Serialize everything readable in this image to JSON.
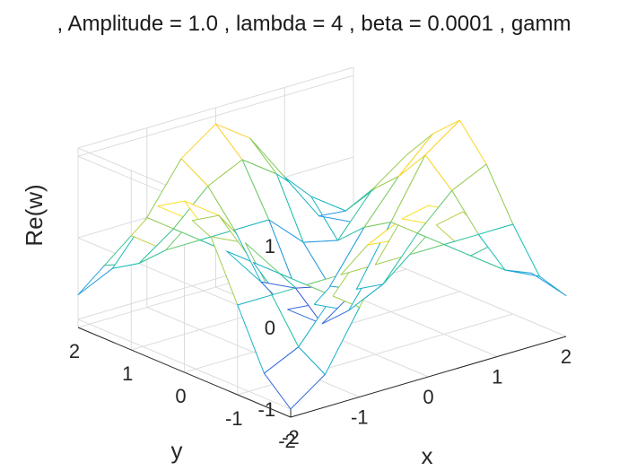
{
  "chart_data": {
    "type": "surface-mesh",
    "title": ", Amplitude = 1.0 , lambda = 4 , beta = 0.0001 , gamm",
    "xlabel": "x",
    "ylabel": "y",
    "zlabel": "Re(w)",
    "xlim": [
      -2,
      2
    ],
    "ylim": [
      -2,
      2
    ],
    "zlim": [
      -1.1,
      1.1
    ],
    "x_ticks": [
      -2,
      -1,
      0,
      1,
      2
    ],
    "y_ticks": [
      -2,
      -1,
      0,
      1,
      2
    ],
    "z_ticks": [
      -1,
      0,
      1
    ],
    "x_tick_labels": [
      "-2",
      "-1",
      "0",
      "1",
      "2"
    ],
    "y_tick_labels": [
      "-2",
      "-1",
      "0",
      "1",
      "2"
    ],
    "z_tick_labels": [
      "-1",
      "0",
      "1"
    ],
    "grid": true,
    "colormap": [
      "#3e26a8",
      "#2e87f7",
      "#13beb8",
      "#81cc59",
      "#fcce2e",
      "#f9fb0e"
    ],
    "x": [
      -2,
      -1.5,
      -1,
      -0.5,
      0,
      0.5,
      1,
      1.5,
      2
    ],
    "y": [
      -2,
      -1.5,
      -1,
      -0.5,
      0,
      0.5,
      1,
      1.5,
      2
    ],
    "z": [
      [
        -1.0,
        -0.7,
        0.0,
        0.7,
        1.0,
        0.8,
        0.3,
        -0.2,
        -0.6
      ],
      [
        -0.7,
        -0.5,
        0.0,
        0.5,
        0.7,
        0.5,
        0.0,
        -0.3,
        -0.5
      ],
      [
        0.0,
        0.0,
        0.0,
        0.0,
        0.0,
        0.0,
        0.0,
        0.0,
        0.0
      ],
      [
        0.7,
        0.5,
        0.0,
        -0.5,
        -0.7,
        -0.5,
        0.0,
        0.4,
        0.6
      ],
      [
        1.0,
        0.7,
        0.0,
        -0.7,
        -1.0,
        -0.7,
        0.0,
        0.7,
        1.0
      ],
      [
        0.8,
        0.5,
        0.0,
        -0.5,
        -0.7,
        -0.8,
        -0.2,
        0.3,
        0.7
      ],
      [
        0.3,
        0.0,
        0.0,
        0.0,
        0.0,
        -0.4,
        -0.5,
        0.0,
        0.3
      ],
      [
        -0.2,
        -0.3,
        0.0,
        0.4,
        0.6,
        0.3,
        -0.1,
        -0.4,
        -0.2
      ],
      [
        -0.7,
        -0.5,
        0.0,
        0.6,
        0.9,
        0.6,
        0.0,
        -0.6,
        -0.8
      ]
    ]
  }
}
